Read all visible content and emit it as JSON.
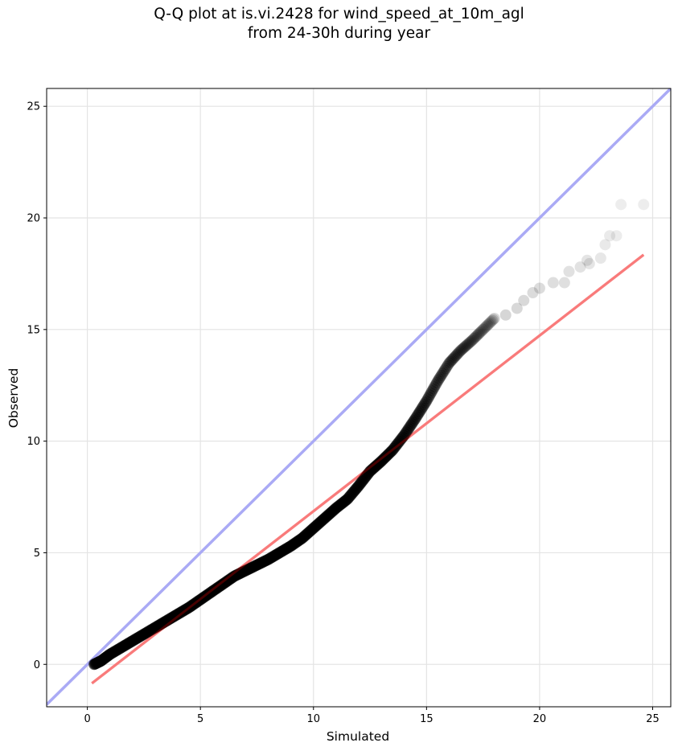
{
  "chart_data": {
    "type": "scatter",
    "title": "Q-Q plot at is.vi.2428 for wind_speed_at_10m_agl",
    "subtitle": "from 24-30h during year",
    "xlabel": "Simulated",
    "ylabel": "Observed",
    "xlim": [
      -1.8,
      25.8
    ],
    "ylim": [
      -1.9,
      25.8
    ],
    "xticks": [
      0,
      5,
      10,
      15,
      20,
      25
    ],
    "yticks": [
      0,
      5,
      10,
      15,
      20,
      25
    ],
    "grid": true,
    "reference_line": {
      "name": "1:1",
      "color": "#aaaaf5",
      "x": [
        -1.8,
        25.8
      ],
      "y": [
        -1.8,
        25.8
      ]
    },
    "fit_line": {
      "color": "#f7a9a9",
      "x": [
        0.2,
        24.6
      ],
      "y": [
        -0.85,
        18.35
      ]
    },
    "quantile_curve": {
      "x": [
        0.3,
        0.6,
        1.0,
        1.5,
        2.0,
        2.5,
        3.0,
        3.5,
        4.0,
        4.5,
        5.0,
        5.5,
        6.0,
        6.5,
        7.0,
        7.5,
        8.0,
        8.5,
        9.0,
        9.5,
        10.0,
        10.5,
        11.0,
        11.5,
        12.0,
        12.5,
        13.0,
        13.5,
        14.0,
        14.5,
        15.0,
        15.5,
        16.0,
        16.5,
        17.0,
        17.5,
        18.0
      ],
      "y": [
        0.0,
        0.15,
        0.45,
        0.75,
        1.05,
        1.35,
        1.65,
        1.95,
        2.25,
        2.55,
        2.9,
        3.25,
        3.6,
        3.95,
        4.2,
        4.45,
        4.7,
        5.0,
        5.3,
        5.65,
        6.1,
        6.55,
        7.0,
        7.4,
        8.0,
        8.65,
        9.1,
        9.6,
        10.25,
        11.0,
        11.8,
        12.7,
        13.5,
        14.05,
        14.5,
        15.0,
        15.5
      ]
    },
    "tail_points": {
      "x": [
        18.5,
        19.0,
        19.3,
        19.7,
        20.0,
        20.6,
        21.1,
        21.3,
        21.8,
        22.1,
        22.2,
        22.7,
        22.9,
        23.1,
        23.4,
        23.6,
        24.6
      ],
      "y": [
        15.65,
        15.95,
        16.3,
        16.65,
        16.85,
        17.1,
        17.1,
        17.6,
        17.8,
        18.1,
        17.95,
        18.2,
        18.8,
        19.2,
        19.2,
        20.6,
        20.6
      ]
    },
    "point_color": "#000000"
  }
}
